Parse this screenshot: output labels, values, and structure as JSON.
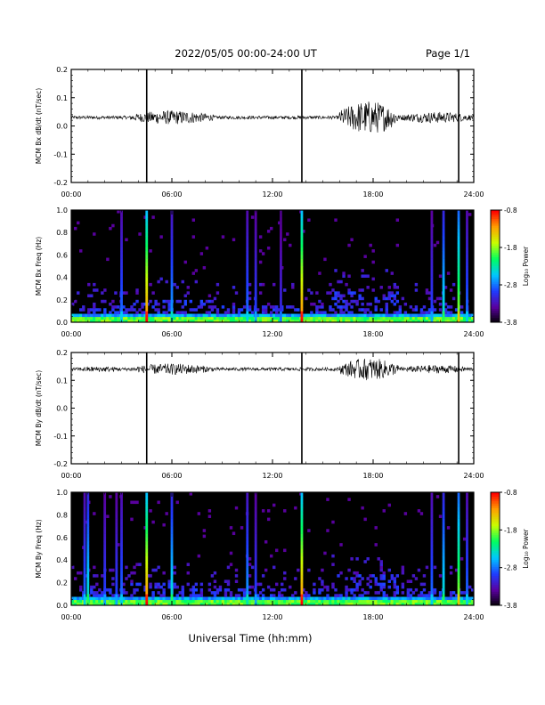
{
  "header": {
    "title": "2022/05/05  00:00-24:00 UT",
    "page": "Page 1/1"
  },
  "footer": {
    "xlabel": "Universal Time (hh:mm)"
  },
  "colors": {
    "background": "#000000",
    "colorbar": [
      "#000000",
      "#5a00a0",
      "#1f3cff",
      "#00c8ff",
      "#00ff60",
      "#c8ff00",
      "#ffa000",
      "#ff0000"
    ]
  },
  "chart_data": [
    {
      "type": "line",
      "ylabel": "MCM Bx dB/dt (nT/sec)",
      "x_ticks": [
        "00:00",
        "06:00",
        "12:00",
        "18:00",
        "24:00"
      ],
      "xlim": [
        0,
        24
      ],
      "ylim": [
        -0.2,
        0.2
      ],
      "y_ticks": [
        "0.2",
        "0.1",
        "0.0",
        "-0.1",
        "-0.2"
      ],
      "y_tick_values": [
        0.2,
        0.1,
        0.0,
        -0.1,
        -0.2
      ],
      "baseline": 0.03,
      "spikes": [
        4.5,
        13.75,
        23.1
      ],
      "activity": [
        {
          "x": [
            3.5,
            8.5
          ],
          "amp": 0.025
        },
        {
          "x": [
            16.0,
            19.5
          ],
          "amp": 0.06
        },
        {
          "x": [
            19.5,
            24.0
          ],
          "amp": 0.02
        }
      ]
    },
    {
      "type": "heatmap",
      "ylabel": "MCM Bx Freq (Hz)",
      "x_ticks": [
        "00:00",
        "06:00",
        "12:00",
        "18:00",
        "24:00"
      ],
      "xlim": [
        0,
        24
      ],
      "ylim": [
        0.0,
        1.0
      ],
      "y_ticks": [
        "1.0",
        "0.8",
        "0.6",
        "0.4",
        "0.2",
        "0.0"
      ],
      "y_tick_values": [
        1.0,
        0.8,
        0.6,
        0.4,
        0.2,
        0.0
      ],
      "colorbar_label": "Log₁₀ Power",
      "colorbar_ticks": [
        "-0.8",
        "-1.8",
        "-2.8",
        "-3.8"
      ],
      "colorbar_values": [
        -0.8,
        -1.8,
        -2.8,
        -3.8
      ],
      "vertical_features": [
        {
          "t": 3.0,
          "level": 0.35
        },
        {
          "t": 4.5,
          "level": 0.9
        },
        {
          "t": 6.0,
          "level": 0.4
        },
        {
          "t": 10.5,
          "level": 0.35
        },
        {
          "t": 11.0,
          "level": 0.3
        },
        {
          "t": 12.5,
          "level": 0.25
        },
        {
          "t": 13.75,
          "level": 0.9
        },
        {
          "t": 21.5,
          "level": 0.3
        },
        {
          "t": 22.2,
          "level": 0.5
        },
        {
          "t": 23.1,
          "level": 0.7
        },
        {
          "t": 23.6,
          "level": 0.35
        }
      ]
    },
    {
      "type": "line",
      "ylabel": "MCM By dB/dt (nT/sec)",
      "x_ticks": [
        "00:00",
        "06:00",
        "12:00",
        "18:00",
        "24:00"
      ],
      "xlim": [
        0,
        24
      ],
      "ylim": [
        -0.2,
        0.2
      ],
      "y_ticks": [
        "0.2",
        "0.1",
        "0.0",
        "-0.1",
        "-0.2"
      ],
      "y_tick_values": [
        0.2,
        0.1,
        0.0,
        -0.1,
        -0.2
      ],
      "baseline": 0.14,
      "spikes": [
        4.5,
        13.75,
        23.1
      ],
      "activity": [
        {
          "x": [
            0.0,
            3.5
          ],
          "amp": 0.01
        },
        {
          "x": [
            3.5,
            8.5
          ],
          "amp": 0.02
        },
        {
          "x": [
            16.0,
            19.5
          ],
          "amp": 0.04
        },
        {
          "x": [
            19.5,
            24.0
          ],
          "amp": 0.015
        }
      ]
    },
    {
      "type": "heatmap",
      "ylabel": "MCM By Freq (Hz)",
      "x_ticks": [
        "00:00",
        "06:00",
        "12:00",
        "18:00",
        "24:00"
      ],
      "xlim": [
        0,
        24
      ],
      "ylim": [
        0.0,
        1.0
      ],
      "y_ticks": [
        "1.0",
        "0.8",
        "0.6",
        "0.4",
        "0.2",
        "0.0"
      ],
      "y_tick_values": [
        1.0,
        0.8,
        0.6,
        0.4,
        0.2,
        0.0
      ],
      "colorbar_label": "Log₁₀ Power",
      "colorbar_ticks": [
        "-0.8",
        "-1.8",
        "-2.8",
        "-3.8"
      ],
      "colorbar_values": [
        -0.8,
        -1.8,
        -2.8,
        -3.8
      ],
      "vertical_features": [
        {
          "t": 0.8,
          "level": 0.35
        },
        {
          "t": 1.0,
          "level": 0.5
        },
        {
          "t": 2.0,
          "level": 0.3
        },
        {
          "t": 2.7,
          "level": 0.3
        },
        {
          "t": 3.0,
          "level": 0.35
        },
        {
          "t": 4.5,
          "level": 0.9
        },
        {
          "t": 6.0,
          "level": 0.5
        },
        {
          "t": 10.5,
          "level": 0.4
        },
        {
          "t": 11.0,
          "level": 0.3
        },
        {
          "t": 13.75,
          "level": 0.9
        },
        {
          "t": 21.5,
          "level": 0.35
        },
        {
          "t": 22.2,
          "level": 0.5
        },
        {
          "t": 23.1,
          "level": 0.7
        },
        {
          "t": 23.6,
          "level": 0.35
        }
      ]
    }
  ]
}
